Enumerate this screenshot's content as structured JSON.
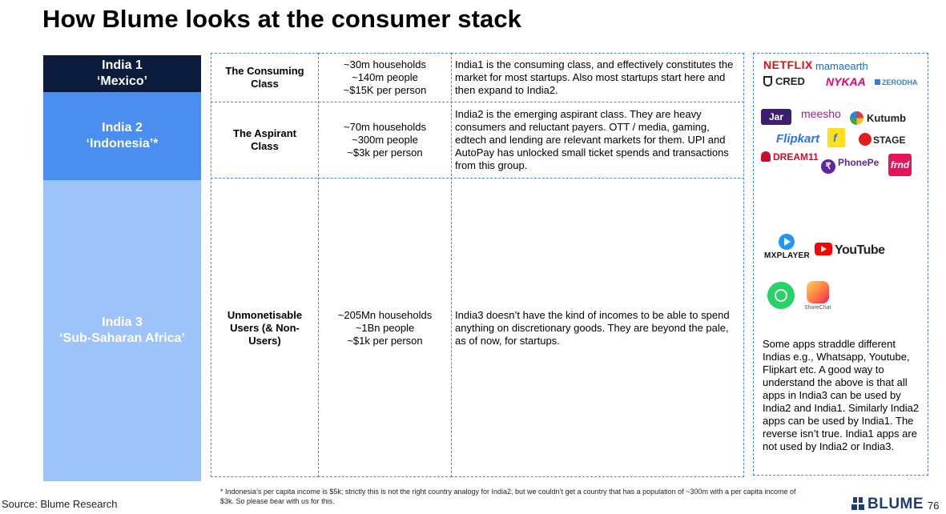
{
  "title": "How Blume looks at the consumer stack",
  "bands": [
    {
      "line1": "India 1",
      "line2": "‘Mexico’"
    },
    {
      "line1": "India 2",
      "line2": "‘Indonesia’*"
    },
    {
      "line1": "India 3",
      "line2": "‘Sub-Saharan Africa’"
    }
  ],
  "rows": [
    {
      "class_name": "The Consuming Class",
      "stats": [
        "~30m households",
        "~140m people",
        "~$15K per person"
      ],
      "description": "India1 is the consuming class, and effectively constitutes the market for most startups. Also most startups start here and then expand to India2."
    },
    {
      "class_name": "The Aspirant Class",
      "stats": [
        "~70m households",
        "~300m people",
        "~$3k per person"
      ],
      "description": "India2 is the emerging aspirant class. They are heavy consumers and reluctant payers. OTT / media, gaming, edtech and lending are relevant markets for them. UPI and AutoPay has unlocked small ticket spends and transactions from this group."
    },
    {
      "class_name": "Unmonetisable Users (& Non-Users)",
      "stats": [
        "~205Mn households",
        "~1Bn people",
        "~$1k per person"
      ],
      "description": "India3 doesn’t have the kind of incomes to be able to spend anything on discretionary goods. They are beyond the pale, as of now, for startups."
    }
  ],
  "logos": {
    "netflix": "NETFLIX",
    "mamaearth": "mamaearth",
    "cred": "CRED",
    "nykaa": "NYKAA",
    "zerodha": "ZERODHA",
    "jar": "Jar",
    "meesho": "meesho",
    "kutumb": "Kutumb",
    "flipkart": "Flipkart",
    "stage": "STAGE",
    "dream11": "DREAM11",
    "phonepe": "PhonePe",
    "frnd": "frnd",
    "mxplayer": "MXPLAYER",
    "youtube": "YouTube",
    "sharechat": "ShareChat"
  },
  "note": "Some apps straddle different Indias e.g., Whatsapp, Youtube, Flipkart etc. A good way to understand the above is that all apps in India3 can be used by India2 and India1. Similarly India2 apps can be used by India1. The reverse isn’t true. India1 apps are not used by India2 or India3.",
  "footnote": "* Indonesia’s per capita income is $5k; strictly this is not the right country analogy for India2, but we couldn’t get a country that has a population of ~300m with a per capita income of $3k. So please bear with us for this.",
  "source": "Source: Blume Research",
  "brand": "BLUME",
  "page_number": "76",
  "colors": {
    "band1": "#0c1c3c",
    "band2": "#4a8eef",
    "band3": "#9dc3f8",
    "dashed_border": "#4a84e0"
  }
}
